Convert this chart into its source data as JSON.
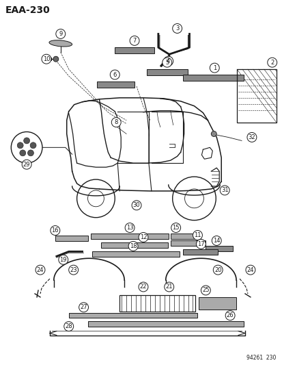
{
  "title": "EAA–230",
  "footer": "94261  230",
  "bg": "#ffffff",
  "lc": "#1a1a1a",
  "figsize": [
    4.14,
    5.33
  ],
  "dpi": 100
}
